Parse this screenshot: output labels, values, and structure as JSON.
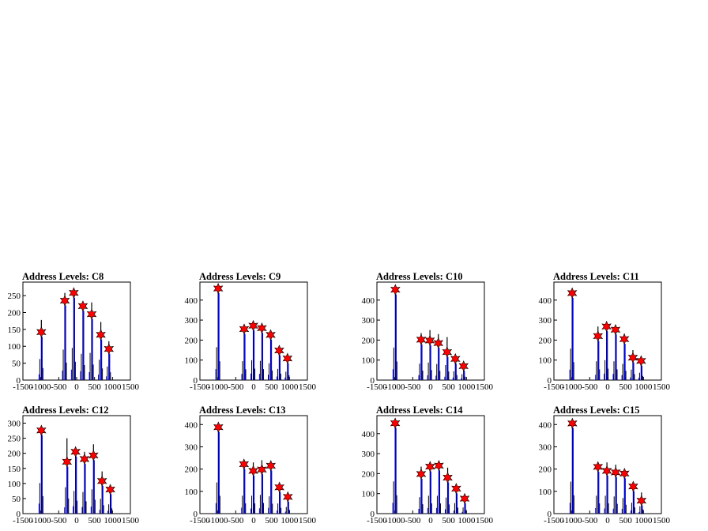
{
  "chart_data": [
    {
      "type": "bar",
      "title": "Address Levels: C8",
      "xlim": [
        -1500,
        1500
      ],
      "ylim": [
        0,
        290
      ],
      "xticks": [
        -1500,
        -1000,
        -500,
        0,
        500,
        1000,
        1500
      ],
      "yticks": [
        0,
        50,
        100,
        150,
        200,
        250
      ],
      "xtick_labels": [
        "-1500",
        "-1000",
        "-500",
        "0",
        "500",
        "1000",
        "1500"
      ],
      "ytick_labels": [
        "0",
        "50",
        "100",
        "150",
        "200",
        "250"
      ],
      "peaks": [
        {
          "x": -985,
          "y": 142
        },
        {
          "x": -330,
          "y": 235
        },
        {
          "x": -80,
          "y": 258
        },
        {
          "x": 175,
          "y": 219
        },
        {
          "x": 420,
          "y": 195
        },
        {
          "x": 675,
          "y": 134
        },
        {
          "x": 900,
          "y": 92
        }
      ],
      "black_max": [
        178,
        258,
        272,
        222,
        230,
        172,
        115
      ],
      "marker_color": "#ff0000",
      "hist_color": "#0000ff"
    },
    {
      "type": "bar",
      "title": "Address Levels: C9",
      "xlim": [
        -1500,
        1500
      ],
      "ylim": [
        0,
        490
      ],
      "xticks": [
        -1500,
        -1000,
        -500,
        0,
        500,
        1000,
        1500
      ],
      "yticks": [
        0,
        100,
        200,
        300,
        400
      ],
      "xtick_labels": [
        "-1500",
        "-1000",
        "-500",
        "0",
        "500",
        "1000",
        "1500"
      ],
      "ytick_labels": [
        "0",
        "100",
        "200",
        "300",
        "400"
      ],
      "peaks": [
        {
          "x": -990,
          "y": 458
        },
        {
          "x": -265,
          "y": 255
        },
        {
          "x": -10,
          "y": 272
        },
        {
          "x": 230,
          "y": 260
        },
        {
          "x": 475,
          "y": 226
        },
        {
          "x": 715,
          "y": 148
        },
        {
          "x": 945,
          "y": 108
        }
      ],
      "black_max": [
        470,
        270,
        285,
        275,
        240,
        160,
        120
      ],
      "marker_color": "#ff0000",
      "hist_color": "#0000ff"
    },
    {
      "type": "bar",
      "title": "Address Levels: C10",
      "xlim": [
        -1500,
        1500
      ],
      "ylim": [
        0,
        490
      ],
      "xticks": [
        -1500,
        -1000,
        -500,
        0,
        500,
        1000,
        1500
      ],
      "yticks": [
        0,
        100,
        200,
        300,
        400
      ],
      "xtick_labels": [
        "-1500",
        "-1000",
        "-500",
        "0",
        "500",
        "1000",
        "1500"
      ],
      "ytick_labels": [
        "0",
        "100",
        "200",
        "300",
        "400"
      ],
      "peaks": [
        {
          "x": -985,
          "y": 452
        },
        {
          "x": -265,
          "y": 202
        },
        {
          "x": -20,
          "y": 198
        },
        {
          "x": 215,
          "y": 185
        },
        {
          "x": 460,
          "y": 140
        },
        {
          "x": 690,
          "y": 106
        },
        {
          "x": 920,
          "y": 70
        }
      ],
      "black_max": [
        465,
        235,
        250,
        230,
        215,
        125,
        85
      ],
      "marker_color": "#ff0000",
      "hist_color": "#0000ff"
    },
    {
      "type": "bar",
      "title": "Address Levels: C11",
      "xlim": [
        -1500,
        1500
      ],
      "ylim": [
        0,
        490
      ],
      "xticks": [
        -1500,
        -1000,
        -500,
        0,
        500,
        1000,
        1500
      ],
      "yticks": [
        0,
        100,
        200,
        300,
        400
      ],
      "xtick_labels": [
        "-1500",
        "-1000",
        "-500",
        "0",
        "500",
        "1000",
        "1500"
      ],
      "ytick_labels": [
        "0",
        "100",
        "200",
        "300",
        "400"
      ],
      "peaks": [
        {
          "x": -990,
          "y": 435
        },
        {
          "x": -270,
          "y": 220
        },
        {
          "x": -30,
          "y": 268
        },
        {
          "x": 220,
          "y": 252
        },
        {
          "x": 465,
          "y": 205
        },
        {
          "x": 705,
          "y": 112
        },
        {
          "x": 935,
          "y": 96
        }
      ],
      "black_max": [
        450,
        268,
        285,
        268,
        232,
        150,
        105
      ],
      "marker_color": "#ff0000",
      "hist_color": "#0000ff"
    },
    {
      "type": "bar",
      "title": "Address Levels: C12",
      "xlim": [
        -1500,
        1500
      ],
      "ylim": [
        0,
        325
      ],
      "xticks": [
        -1500,
        -1000,
        -500,
        0,
        500,
        1000,
        1500
      ],
      "yticks": [
        0,
        50,
        100,
        150,
        200,
        250,
        300
      ],
      "xtick_labels": [
        "-1500",
        "-1000",
        "-500",
        "0",
        "500",
        "1000",
        "1500"
      ],
      "ytick_labels": [
        "0",
        "50",
        "100",
        "150",
        "200",
        "250",
        "300"
      ],
      "peaks": [
        {
          "x": -985,
          "y": 276
        },
        {
          "x": -270,
          "y": 172
        },
        {
          "x": -30,
          "y": 205
        },
        {
          "x": 220,
          "y": 181
        },
        {
          "x": 470,
          "y": 193
        },
        {
          "x": 710,
          "y": 108
        },
        {
          "x": 940,
          "y": 80
        }
      ],
      "black_max": [
        290,
        250,
        215,
        205,
        230,
        140,
        88
      ],
      "marker_color": "#ff0000",
      "hist_color": "#0000ff"
    },
    {
      "type": "bar",
      "title": "Address Levels: C13",
      "xlim": [
        -1500,
        1500
      ],
      "ylim": [
        0,
        440
      ],
      "xticks": [
        -1500,
        -1000,
        -500,
        0,
        500,
        1000,
        1500
      ],
      "yticks": [
        0,
        100,
        200,
        300,
        400
      ],
      "xtick_labels": [
        "-1500",
        "-1000",
        "-500",
        "0",
        "500",
        "1000",
        "1500"
      ],
      "ytick_labels": [
        "0",
        "100",
        "200",
        "300",
        "400"
      ],
      "peaks": [
        {
          "x": -985,
          "y": 388
        },
        {
          "x": -270,
          "y": 222
        },
        {
          "x": -10,
          "y": 192
        },
        {
          "x": 230,
          "y": 198
        },
        {
          "x": 480,
          "y": 215
        },
        {
          "x": 720,
          "y": 118
        },
        {
          "x": 955,
          "y": 75
        }
      ],
      "black_max": [
        400,
        230,
        230,
        240,
        222,
        130,
        85
      ],
      "marker_color": "#ff0000",
      "hist_color": "#0000ff"
    },
    {
      "type": "bar",
      "title": "Address Levels: C14",
      "xlim": [
        -1500,
        1500
      ],
      "ylim": [
        0,
        490
      ],
      "xticks": [
        -1500,
        -1000,
        -500,
        0,
        500,
        1000,
        1500
      ],
      "yticks": [
        0,
        100,
        200,
        300,
        400
      ],
      "xtick_labels": [
        "-1500",
        "-1000",
        "-500",
        "0",
        "500",
        "1000",
        "1500"
      ],
      "ytick_labels": [
        "0",
        "100",
        "200",
        "300",
        "400"
      ],
      "peaks": [
        {
          "x": -990,
          "y": 452
        },
        {
          "x": -265,
          "y": 198
        },
        {
          "x": -15,
          "y": 235
        },
        {
          "x": 230,
          "y": 240
        },
        {
          "x": 475,
          "y": 180
        },
        {
          "x": 715,
          "y": 125
        },
        {
          "x": 950,
          "y": 75
        }
      ],
      "black_max": [
        460,
        235,
        255,
        255,
        230,
        150,
        88
      ],
      "marker_color": "#ff0000",
      "hist_color": "#0000ff"
    },
    {
      "type": "bar",
      "title": "Address Levels: C15",
      "xlim": [
        -1500,
        1500
      ],
      "ylim": [
        0,
        440
      ],
      "xticks": [
        -1500,
        -1000,
        -500,
        0,
        500,
        1000,
        1500
      ],
      "yticks": [
        0,
        100,
        200,
        300,
        400
      ],
      "xtick_labels": [
        "-1500",
        "-1000",
        "-500",
        "0",
        "500",
        "1000",
        "1500"
      ],
      "ytick_labels": [
        "0",
        "100",
        "200",
        "300",
        "400"
      ],
      "peaks": [
        {
          "x": -985,
          "y": 405
        },
        {
          "x": -270,
          "y": 210
        },
        {
          "x": -20,
          "y": 192
        },
        {
          "x": 225,
          "y": 185
        },
        {
          "x": 470,
          "y": 180
        },
        {
          "x": 715,
          "y": 122
        },
        {
          "x": 945,
          "y": 58
        }
      ],
      "black_max": [
        410,
        230,
        230,
        220,
        200,
        140,
        95
      ],
      "marker_color": "#ff0000",
      "hist_color": "#0000ff"
    }
  ]
}
